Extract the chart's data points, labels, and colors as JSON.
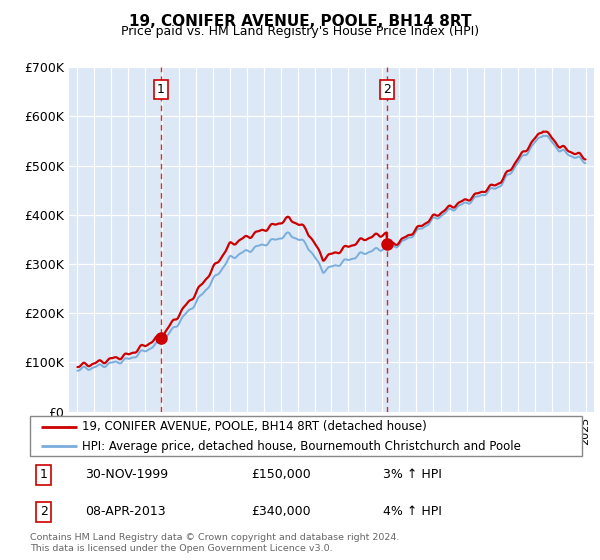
{
  "title": "19, CONIFER AVENUE, POOLE, BH14 8RT",
  "subtitle": "Price paid vs. HM Land Registry's House Price Index (HPI)",
  "legend_line1": "19, CONIFER AVENUE, POOLE, BH14 8RT (detached house)",
  "legend_line2": "HPI: Average price, detached house, Bournemouth Christchurch and Poole",
  "footnote": "Contains HM Land Registry data © Crown copyright and database right 2024.\nThis data is licensed under the Open Government Licence v3.0.",
  "sale1_date": "30-NOV-1999",
  "sale1_price": "£150,000",
  "sale1_hpi": "3% ↑ HPI",
  "sale2_date": "08-APR-2013",
  "sale2_price": "£340,000",
  "sale2_hpi": "4% ↑ HPI",
  "hpi_color": "#7aaddc",
  "price_color": "#cc0000",
  "plot_bg": "#dce8f5",
  "grid_color": "#ffffff",
  "ylim": [
    0,
    700000
  ],
  "ytick_vals": [
    0,
    100000,
    200000,
    300000,
    400000,
    500000,
    600000,
    700000
  ],
  "ytick_labels": [
    "£0",
    "£100K",
    "£200K",
    "£300K",
    "£400K",
    "£500K",
    "£600K",
    "£700K"
  ],
  "sale1_x": 1999.92,
  "sale1_y": 150000,
  "sale2_x": 2013.27,
  "sale2_y": 340000,
  "xmin": 1994.5,
  "xmax": 2025.5
}
